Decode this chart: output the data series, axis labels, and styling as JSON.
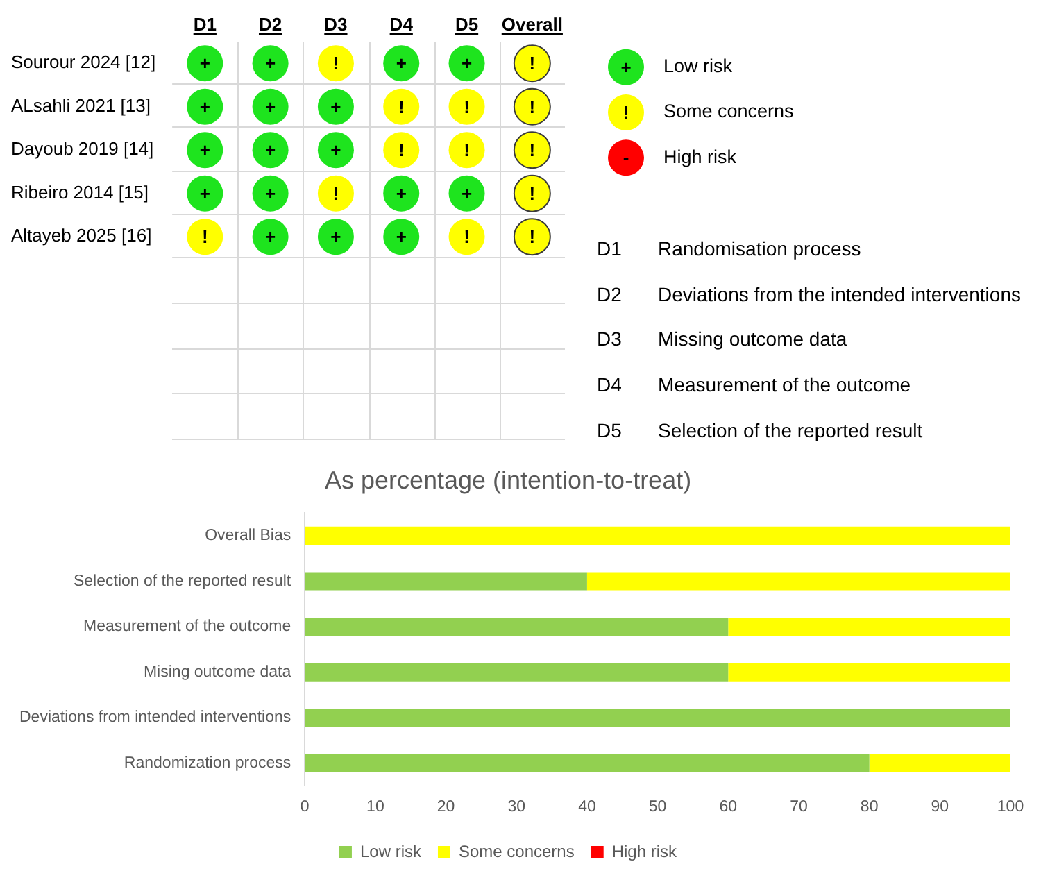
{
  "chart_data": [
    {
      "type": "other",
      "categories": [
        "D1",
        "D2",
        "D3",
        "D4",
        "D5",
        "Overall"
      ],
      "y_categories": [
        "Sourour 2024 [12]",
        "ALsahli 2021 [13]",
        "Dayoub 2019 [14]",
        "Ribeiro 2014 [15]",
        "Altayeb 2025 [16]"
      ],
      "cell_labels": [
        [
          "+",
          "+",
          "!",
          "+",
          "+",
          "!"
        ],
        [
          "+",
          "+",
          "+",
          "!",
          "!",
          "!"
        ],
        [
          "+",
          "+",
          "+",
          "!",
          "!",
          "!"
        ],
        [
          "+",
          "+",
          "!",
          "+",
          "+",
          "!"
        ],
        [
          "!",
          "+",
          "+",
          "+",
          "!",
          "!"
        ]
      ],
      "colors": [
        "#1ee41e",
        "#1ee41e",
        "#ffff00",
        "#1ee41e",
        "#1ee41e",
        "#ffff00",
        "#1ee41e",
        "#1ee41e",
        "#1ee41e",
        "#ffff00",
        "#ffff00",
        "#ffff00",
        "#1ee41e",
        "#1ee41e",
        "#1ee41e",
        "#ffff00",
        "#ffff00",
        "#ffff00",
        "#1ee41e",
        "#1ee41e",
        "#ffff00",
        "#1ee41e",
        "#1ee41e",
        "#ffff00",
        "#ffff00",
        "#1ee41e",
        "#1ee41e",
        "#1ee41e",
        "#ffff00",
        "#ffff00"
      ],
      "annotations": [
        "D1 Randomisation process",
        "D2 Deviations from the intended interventions",
        "D3 Missing outcome data",
        "D4 Measurement of the outcome",
        "D5 Selection of the reported result"
      ]
    },
    {
      "type": "other",
      "y2_categories": [
        "Low risk",
        "Some concerns",
        "High risk"
      ],
      "cell_labels": [
        [
          "+"
        ],
        [
          "!"
        ],
        [
          "-"
        ]
      ],
      "colors": [
        "#1ee41e",
        "#ffff00",
        "#ff0000"
      ]
    },
    {
      "type": "bar",
      "orientation": "horizontal",
      "stacked": true,
      "title": "As percentage (intention-to-treat)",
      "categories": [
        "Overall Bias",
        "Selection of the reported result",
        "Measurement of the outcome",
        "Mising outcome data",
        "Deviations from intended interventions",
        "Randomization process"
      ],
      "series": [
        {
          "name": "Low risk",
          "color": "#92d050",
          "values": [
            0,
            40,
            60,
            60,
            100,
            80
          ]
        },
        {
          "name": "Some concerns",
          "color": "#ffff00",
          "values": [
            100,
            60,
            40,
            40,
            0,
            20
          ]
        },
        {
          "name": "High risk",
          "color": "#ff0000",
          "values": [
            0,
            0,
            0,
            0,
            0,
            0
          ]
        }
      ],
      "xlim": [
        0,
        100
      ],
      "xticks": [
        0,
        10,
        20,
        30,
        40,
        50,
        60,
        70,
        80,
        90,
        100
      ],
      "legend": "bottom"
    }
  ]
}
